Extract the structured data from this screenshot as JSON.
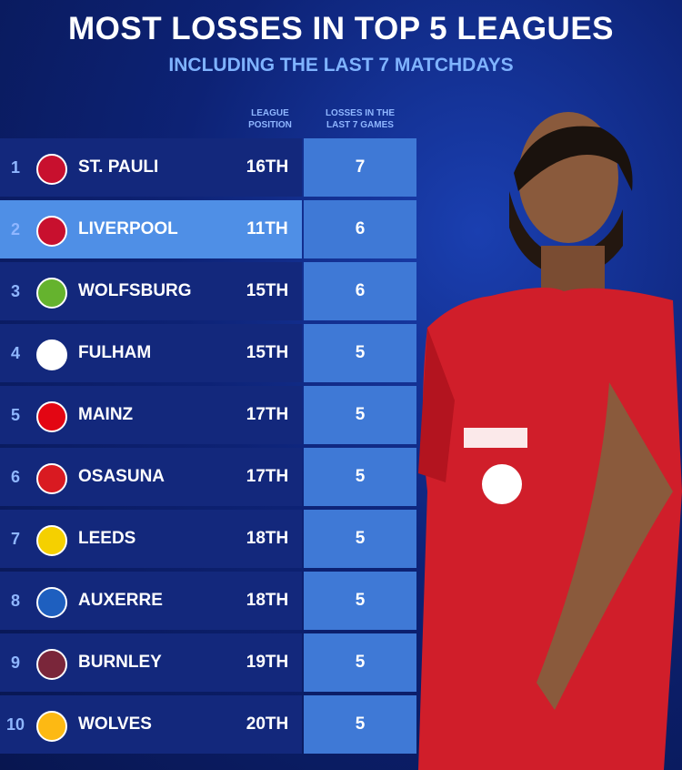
{
  "header": {
    "title": "MOST LOSSES IN TOP 5 LEAGUES",
    "subtitle": "INCLUDING THE LAST 7 MATCHDAYS"
  },
  "table": {
    "columns": [
      "LEAGUE POSITION",
      "LOSSES IN THE LAST 7 GAMES"
    ],
    "rows": [
      {
        "rank": 1,
        "team": "ST. PAULI",
        "position": "16TH",
        "losses": 7
      },
      {
        "rank": 2,
        "team": "LIVERPOOL",
        "position": "11TH",
        "losses": 6
      },
      {
        "rank": 3,
        "team": "WOLFSBURG",
        "position": "15TH",
        "losses": 6
      },
      {
        "rank": 4,
        "team": "FULHAM",
        "position": "15TH",
        "losses": 5
      },
      {
        "rank": 5,
        "team": "MAINZ",
        "position": "17TH",
        "losses": 5
      },
      {
        "rank": 6,
        "team": "OSASUNA",
        "position": "17TH",
        "losses": 5
      },
      {
        "rank": 7,
        "team": "LEEDS",
        "position": "18TH",
        "losses": 5
      },
      {
        "rank": 8,
        "team": "AUXERRE",
        "position": "18TH",
        "losses": 5
      },
      {
        "rank": 9,
        "team": "BURNLEY",
        "position": "19TH",
        "losses": 5
      },
      {
        "rank": 10,
        "team": "WOLVES",
        "position": "20TH",
        "losses": 5
      }
    ],
    "highlight_row": 1
  }
}
